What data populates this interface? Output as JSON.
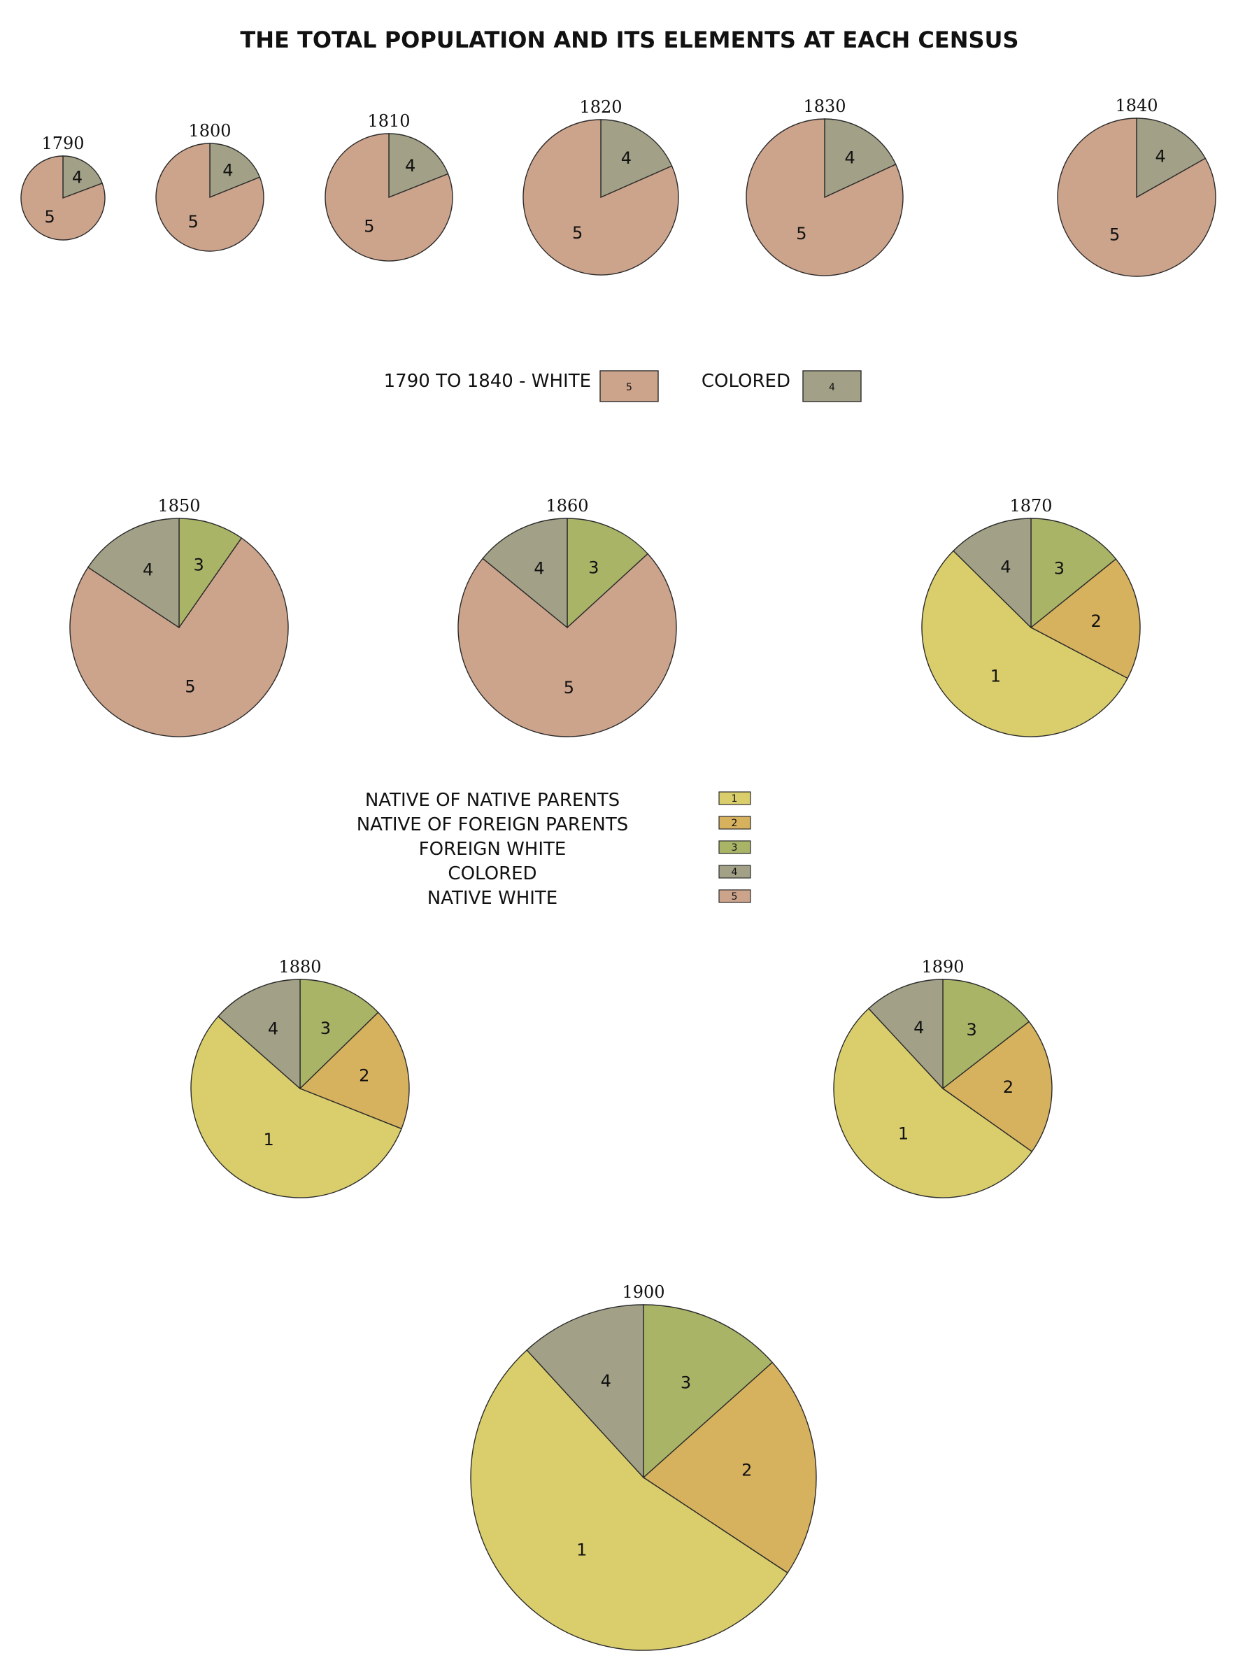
{
  "title": "THE TOTAL POPULATION AND ITS ELEMENTS AT EACH CENSUS",
  "colors": {
    "1": "#d9cd6c",
    "2": "#d6b15e",
    "3": "#a9b467",
    "4": "#a2a187",
    "5": "#cca38b",
    "stroke": "#2b2b2b"
  },
  "legend_early": {
    "items": [
      {
        "label": "1790 TO 1840 - WHITE",
        "key": "5"
      },
      {
        "label": "COLORED",
        "key": "4"
      }
    ]
  },
  "legend_late": {
    "items": [
      {
        "label": "NATIVE OF NATIVE PARENTS",
        "key": "1"
      },
      {
        "label": "NATIVE OF FOREIGN PARENTS",
        "key": "2"
      },
      {
        "label": "FOREIGN WHITE",
        "key": "3"
      },
      {
        "label": "COLORED",
        "key": "4"
      },
      {
        "label": "NATIVE WHITE",
        "key": "5"
      }
    ]
  },
  "chart_data": [
    {
      "type": "pie",
      "title": "1790",
      "slices": [
        {
          "label": "4",
          "value": 19.3
        },
        {
          "label": "5",
          "value": 80.7
        }
      ]
    },
    {
      "type": "pie",
      "title": "1800",
      "slices": [
        {
          "label": "4",
          "value": 18.9
        },
        {
          "label": "5",
          "value": 81.1
        }
      ]
    },
    {
      "type": "pie",
      "title": "1810",
      "slices": [
        {
          "label": "4",
          "value": 19.0
        },
        {
          "label": "5",
          "value": 81.0
        }
      ]
    },
    {
      "type": "pie",
      "title": "1820",
      "slices": [
        {
          "label": "4",
          "value": 18.4
        },
        {
          "label": "5",
          "value": 81.6
        }
      ]
    },
    {
      "type": "pie",
      "title": "1830",
      "slices": [
        {
          "label": "4",
          "value": 18.1
        },
        {
          "label": "5",
          "value": 81.9
        }
      ]
    },
    {
      "type": "pie",
      "title": "1840",
      "slices": [
        {
          "label": "4",
          "value": 16.8
        },
        {
          "label": "5",
          "value": 83.2
        }
      ]
    },
    {
      "type": "pie",
      "title": "1850",
      "slices": [
        {
          "label": "3",
          "value": 9.7
        },
        {
          "label": "5",
          "value": 74.6
        },
        {
          "label": "4",
          "value": 15.7
        }
      ]
    },
    {
      "type": "pie",
      "title": "1860",
      "slices": [
        {
          "label": "3",
          "value": 13.2
        },
        {
          "label": "5",
          "value": 72.7
        },
        {
          "label": "4",
          "value": 14.1
        }
      ]
    },
    {
      "type": "pie",
      "title": "1870",
      "slices": [
        {
          "label": "3",
          "value": 14.2
        },
        {
          "label": "2",
          "value": 18.5
        },
        {
          "label": "1",
          "value": 54.7
        },
        {
          "label": "4",
          "value": 12.6
        }
      ]
    },
    {
      "type": "pie",
      "title": "1880",
      "slices": [
        {
          "label": "3",
          "value": 12.7
        },
        {
          "label": "2",
          "value": 18.3
        },
        {
          "label": "1",
          "value": 55.5
        },
        {
          "label": "4",
          "value": 13.5
        }
      ]
    },
    {
      "type": "pie",
      "title": "1890",
      "slices": [
        {
          "label": "3",
          "value": 14.5
        },
        {
          "label": "2",
          "value": 20.3
        },
        {
          "label": "1",
          "value": 53.3
        },
        {
          "label": "4",
          "value": 11.9
        }
      ]
    },
    {
      "type": "pie",
      "title": "1900",
      "slices": [
        {
          "label": "3",
          "value": 13.4
        },
        {
          "label": "2",
          "value": 20.9
        },
        {
          "label": "1",
          "value": 53.9
        },
        {
          "label": "4",
          "value": 11.8
        }
      ]
    }
  ]
}
